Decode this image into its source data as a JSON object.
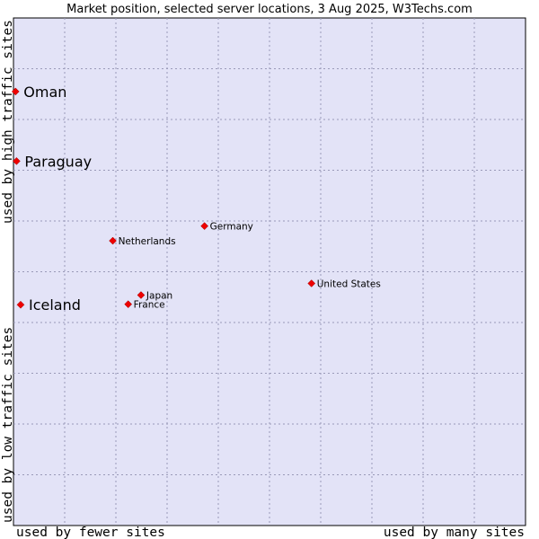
{
  "chart_data": {
    "type": "scatter",
    "title": "Market position, selected server locations, 3 Aug 2025, W3Techs.com",
    "xlabel_left": "used by fewer sites",
    "xlabel_right": "used by many sites",
    "ylabel_top": "used by high traffic sites",
    "ylabel_bottom": "used by low traffic sites",
    "xlim": [
      0,
      100
    ],
    "ylim": [
      0,
      100
    ],
    "grid": true,
    "colors": {
      "plot_background": "#e3e3f7",
      "plot_border": "#000000",
      "grid": "#9a9ab8",
      "point": "#ee0000"
    },
    "points": [
      {
        "label": "Oman",
        "x": 0.4,
        "y": 85.5,
        "emphasis": true
      },
      {
        "label": "Paraguay",
        "x": 0.6,
        "y": 71.8,
        "emphasis": true
      },
      {
        "label": "Iceland",
        "x": 1.4,
        "y": 43.5,
        "emphasis": true
      },
      {
        "label": "Germany",
        "x": 37.3,
        "y": 59.0,
        "emphasis": false
      },
      {
        "label": "Netherlands",
        "x": 19.4,
        "y": 56.1,
        "emphasis": false
      },
      {
        "label": "United States",
        "x": 58.2,
        "y": 47.7,
        "emphasis": false
      },
      {
        "label": "Japan",
        "x": 24.9,
        "y": 45.4,
        "emphasis": false
      },
      {
        "label": "France",
        "x": 22.4,
        "y": 43.6,
        "emphasis": false
      }
    ]
  }
}
